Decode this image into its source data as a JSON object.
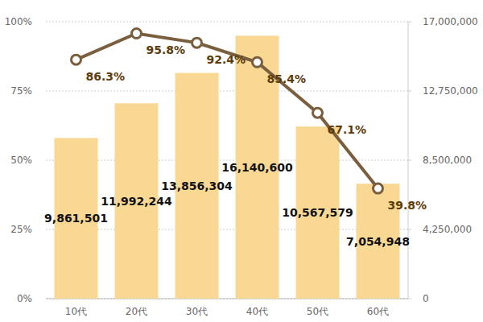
{
  "chart_data": {
    "type": "bar",
    "categories": [
      "10代",
      "20代",
      "30代",
      "40代",
      "50代",
      "60代"
    ],
    "series": [
      {
        "type": "bar",
        "axis": "y2",
        "color": "#f9d894",
        "values": [
          9861501,
          11992244,
          13856304,
          16140600,
          10567579,
          7054948
        ],
        "value_labels": [
          "9,861,501",
          "11,992,244",
          "13,856,304",
          "16,140,600",
          "10,567,579",
          "7,054,948"
        ]
      },
      {
        "type": "line",
        "color": "#7a5f3e",
        "marker": "circle",
        "line_style": "solid",
        "values": [
          86.3,
          95.8,
          92.4,
          85.4,
          67.1,
          39.8
        ],
        "value_labels": [
          "86.3%",
          "95.8%",
          "92.4%",
          "85.4%",
          "67.1%",
          "39.8%"
        ]
      }
    ],
    "ylim": [
      0,
      100
    ],
    "yticks": [
      {
        "value": 0,
        "label": "0%"
      },
      {
        "value": 25,
        "label": "25%"
      },
      {
        "value": 50,
        "label": "50%"
      },
      {
        "value": 75,
        "label": "75%"
      },
      {
        "value": 100,
        "label": "100%"
      }
    ],
    "y2lim": [
      0,
      17000000
    ],
    "y2ticks": [
      0,
      {
        "value": 4250000,
        "label": "4,250,000"
      },
      {
        "value": 8500000,
        "label": "8,500,000"
      },
      {
        "value": 12750000,
        "label": "12,750,000"
      },
      {
        "value": 17000000,
        "label": "17,000,000"
      }
    ],
    "grid": true,
    "data_labels": true
  }
}
